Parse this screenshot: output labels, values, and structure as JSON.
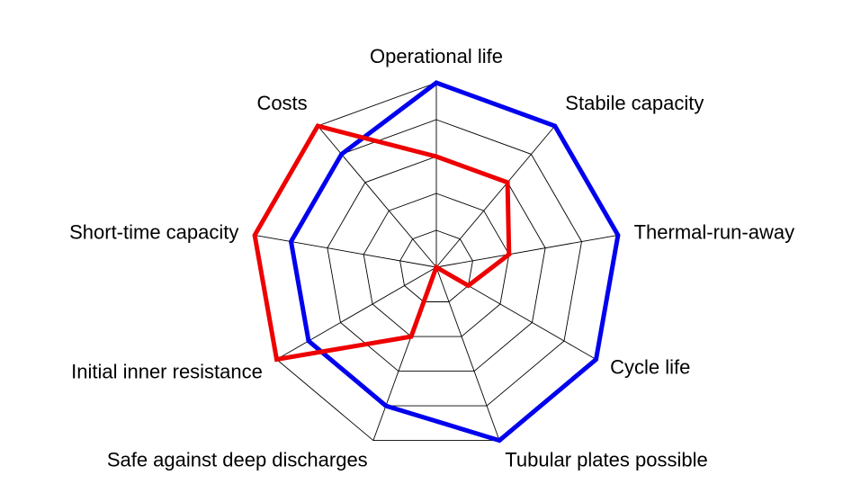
{
  "chart_data": {
    "type": "radar",
    "title": "",
    "axes": [
      "Operational life",
      "Stabile capacity",
      "Thermal-run-away",
      "Cycle life",
      "Tubular plates possible",
      "Safe against deep discharges",
      "Initial inner resistance",
      "Short-time capacity",
      "Costs"
    ],
    "rlim": [
      0,
      5
    ],
    "rings": 5,
    "grid": true,
    "legend": "none",
    "series": [
      {
        "color": "#0000ee",
        "values": [
          5,
          5,
          5,
          5,
          5,
          4,
          4,
          4,
          4
        ]
      },
      {
        "color": "#ee0000",
        "values": [
          3,
          3,
          2,
          1,
          0,
          2,
          5,
          5,
          5
        ]
      }
    ]
  }
}
